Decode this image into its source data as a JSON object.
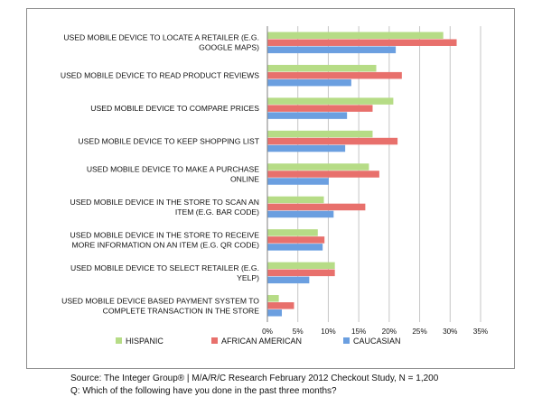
{
  "chart_data": {
    "type": "bar",
    "orientation": "horizontal",
    "categories": [
      [
        "USED MOBILE DEVICE TO LOCATE A RETAILER  (E.G.",
        "GOOGLE MAPS)"
      ],
      [
        "USED MOBILE DEVICE TO READ PRODUCT REVIEWS"
      ],
      [
        "USED MOBILE DEVICE TO COMPARE PRICES"
      ],
      [
        "USED MOBILE DEVICE TO KEEP SHOPPING LIST"
      ],
      [
        "USED MOBILE DEVICE TO MAKE A PURCHASE",
        "ONLINE"
      ],
      [
        "USED MOBILE DEVICE IN THE STORE TO SCAN AN",
        "ITEM (E.G. BAR CODE)"
      ],
      [
        "USED MOBILE DEVICE IN THE STORE TO RECEIVE",
        "MORE INFORMATION ON AN ITEM (E.G. QR CODE)"
      ],
      [
        "USED MOBILE DEVICE TO SELECT RETAILER (E.G.",
        "YELP)"
      ],
      [
        "USED MOBILE DEVICE BASED PAYMENT SYSTEM TO",
        "COMPLETE TRANSACTION IN THE STORE"
      ]
    ],
    "series": [
      {
        "name": "HISPANIC",
        "color": "#b6dc86",
        "values": [
          28.8,
          17.8,
          20.6,
          17.2,
          16.6,
          9.2,
          8.2,
          11.0,
          1.8
        ]
      },
      {
        "name": "AFRICAN AMERICAN",
        "color": "#e8706c",
        "values": [
          31.0,
          22.0,
          17.2,
          21.3,
          18.3,
          16.0,
          9.3,
          11.0,
          4.3
        ]
      },
      {
        "name": "CAUCASIAN",
        "color": "#6b9fe0",
        "values": [
          21.0,
          13.7,
          13.0,
          12.7,
          10.0,
          10.8,
          9.0,
          6.8,
          2.3
        ]
      }
    ],
    "xlim": [
      0,
      35
    ],
    "xticks": [
      "0%",
      "5%",
      "10%",
      "15%",
      "20%",
      "25%",
      "30%",
      "35%"
    ],
    "grid": true,
    "legend_position": "bottom"
  },
  "source_note": {
    "line1": "Source: The Integer Group® | M/A/R/C Research February 2012 Checkout Study, N = 1,200",
    "line2": "Q: Which of the following have you done in the past three months?"
  }
}
